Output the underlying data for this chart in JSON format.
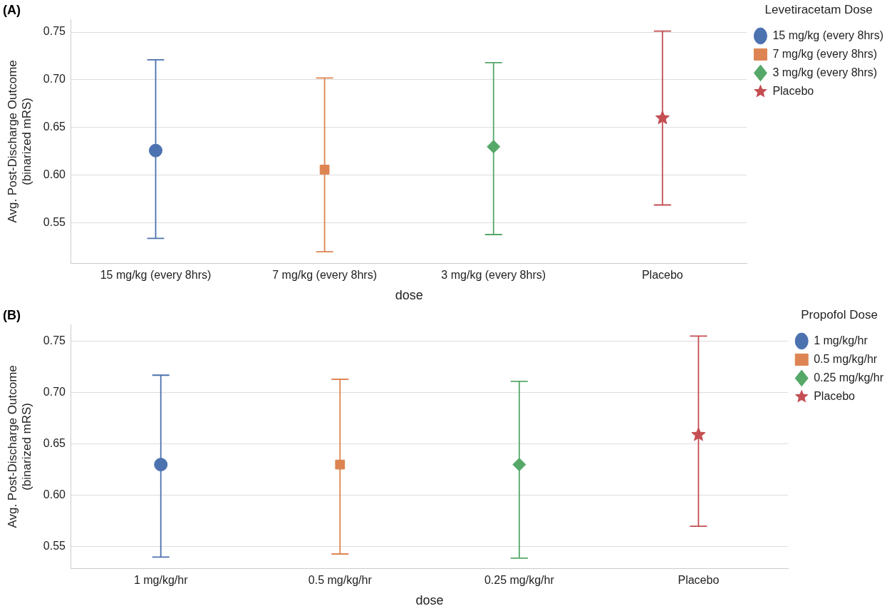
{
  "chart_data": [
    {
      "type": "scatter",
      "title": "(A)",
      "xlabel": "dose",
      "ylabel": "Avg. Post-Discharge Outcome\n(binarized mRS)",
      "legend_title": "Levetiracetam Dose",
      "categories": [
        "15 mg/kg (every 8hrs)",
        "7 mg/kg (every 8hrs)",
        "3 mg/kg (every 8hrs)",
        "Placebo"
      ],
      "series": [
        {
          "name": "15 mg/kg (every 8hrs)",
          "color": "#4c72b0",
          "marker": "circle",
          "x": [
            "15 mg/kg (every 8hrs)"
          ],
          "values": [
            0.626
          ],
          "errors": [
            [
              0.534,
              0.721
            ]
          ]
        },
        {
          "name": "7 mg/kg (every 8hrs)",
          "color": "#dd8452",
          "marker": "square",
          "x": [
            "7 mg/kg (every 8hrs)"
          ],
          "values": [
            0.606
          ],
          "errors": [
            [
              0.52,
              0.702
            ]
          ]
        },
        {
          "name": "3 mg/kg (every 8hrs)",
          "color": "#55a868",
          "marker": "diamond",
          "x": [
            "3 mg/kg (every 8hrs)"
          ],
          "values": [
            0.63
          ],
          "errors": [
            [
              0.538,
              0.718
            ]
          ]
        },
        {
          "name": "Placebo",
          "color": "#c44e52",
          "marker": "star",
          "x": [
            "Placebo"
          ],
          "values": [
            0.66
          ],
          "errors": [
            [
              0.569,
              0.751
            ]
          ]
        }
      ],
      "ylim": [
        0.508,
        0.763
      ],
      "yticks": [
        {
          "value": 0.55,
          "label": "0.55"
        },
        {
          "value": 0.6,
          "label": "0.60"
        },
        {
          "value": 0.65,
          "label": "0.65"
        },
        {
          "value": 0.7,
          "label": "0.70"
        },
        {
          "value": 0.75,
          "label": "0.75"
        }
      ],
      "grid": "y",
      "legend": "top right"
    },
    {
      "type": "scatter",
      "title": "(B)",
      "xlabel": "dose",
      "ylabel": "Avg. Post-Discharge Outcome\n(binarized mRS)",
      "legend_title": "Propofol Dose",
      "categories": [
        "1 mg/kg/hr",
        "0.5 mg/kg/hr",
        "0.25 mg/kg/hr",
        "Placebo"
      ],
      "series": [
        {
          "name": "1 mg/kg/hr",
          "color": "#4c72b0",
          "marker": "circle",
          "x": [
            "1 mg/kg/hr"
          ],
          "values": [
            0.63
          ],
          "errors": [
            [
              0.54,
              0.717
            ]
          ]
        },
        {
          "name": "0.5 mg/kg/hr",
          "color": "#dd8452",
          "marker": "square",
          "x": [
            "0.5 mg/kg/hr"
          ],
          "values": [
            0.63
          ],
          "errors": [
            [
              0.543,
              0.713
            ]
          ]
        },
        {
          "name": "0.25 mg/kg/hr",
          "color": "#55a868",
          "marker": "diamond",
          "x": [
            "0.25 mg/kg/hr"
          ],
          "values": [
            0.63
          ],
          "errors": [
            [
              0.539,
              0.711
            ]
          ]
        },
        {
          "name": "Placebo",
          "color": "#c44e52",
          "marker": "star",
          "x": [
            "Placebo"
          ],
          "values": [
            0.659
          ],
          "errors": [
            [
              0.57,
              0.755
            ]
          ]
        }
      ],
      "ylim": [
        0.529,
        0.766
      ],
      "yticks": [
        {
          "value": 0.55,
          "label": "0.55"
        },
        {
          "value": 0.6,
          "label": "0.60"
        },
        {
          "value": 0.65,
          "label": "0.65"
        },
        {
          "value": 0.7,
          "label": "0.70"
        },
        {
          "value": 0.75,
          "label": "0.75"
        }
      ],
      "grid": "y",
      "legend": "top right"
    }
  ]
}
